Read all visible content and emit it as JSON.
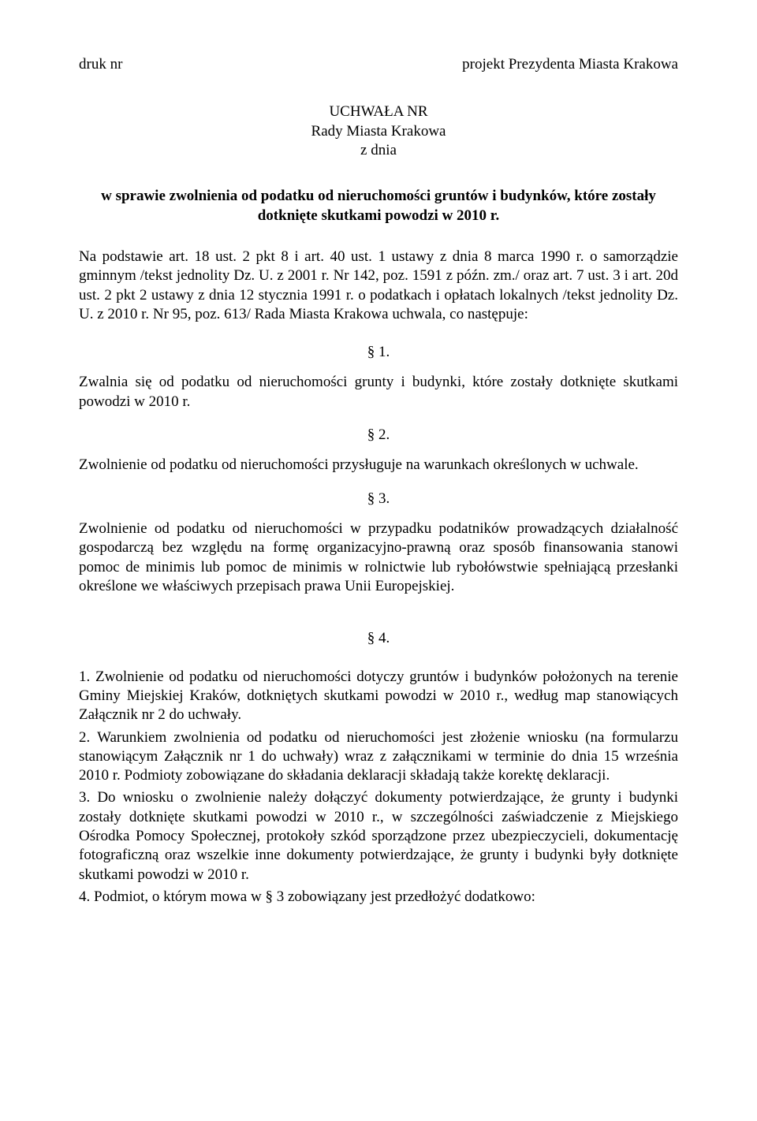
{
  "header": {
    "left": "druk nr",
    "right": "projekt Prezydenta Miasta Krakowa"
  },
  "titleBlock": {
    "line1": "UCHWAŁA NR",
    "line2": "Rady Miasta Krakowa",
    "line3": "z dnia"
  },
  "subject": "w sprawie zwolnienia od podatku od nieruchomości gruntów i budynków, które zostały dotknięte skutkami powodzi w 2010 r.",
  "legalBasis": "Na podstawie art. 18 ust. 2 pkt 8 i art. 40 ust. 1 ustawy z dnia 8 marca 1990 r. o samorządzie gminnym /tekst jednolity Dz. U. z 2001 r. Nr 142, poz. 1591 z późn. zm./ oraz art. 7 ust. 3 i art. 20d ust. 2 pkt 2 ustawy z dnia 12 stycznia 1991 r. o podatkach i opłatach lokalnych /tekst jednolity Dz. U. z 2010 r. Nr 95, poz. 613/ Rada Miasta Krakowa uchwala, co następuje:",
  "sections": {
    "s1": {
      "num": "§ 1.",
      "text": "Zwalnia się od podatku od nieruchomości grunty i budynki, które zostały dotknięte skutkami powodzi w 2010 r."
    },
    "s2": {
      "num": "§ 2.",
      "text": "Zwolnienie od podatku od nieruchomości przysługuje na warunkach określonych w uchwale."
    },
    "s3": {
      "num": "§ 3.",
      "text": "Zwolnienie od podatku od nieruchomości w przypadku podatników prowadzących działalność gospodarczą bez względu na formę organizacyjno-prawną oraz sposób finansowania stanowi pomoc de minimis lub pomoc de minimis w rolnictwie lub rybołówstwie spełniającą przesłanki określone we właściwych przepisach prawa Unii Europejskiej."
    },
    "s4": {
      "num": "§ 4.",
      "p1": "1. Zwolnienie od podatku od nieruchomości dotyczy gruntów i budynków położonych na terenie Gminy Miejskiej Kraków, dotkniętych skutkami powodzi w 2010 r., według map stanowiących Załącznik nr 2 do uchwały.",
      "p2": "2. Warunkiem zwolnienia od podatku od nieruchomości jest złożenie wniosku (na formularzu stanowiącym Załącznik nr 1 do uchwały) wraz z załącznikami w terminie do dnia 15 września 2010 r. Podmioty zobowiązane do składania deklaracji składają także korektę deklaracji.",
      "p3": "3. Do wniosku o zwolnienie należy dołączyć dokumenty potwierdzające, że grunty i budynki zostały dotknięte skutkami powodzi w 2010 r., w szczególności zaświadczenie z Miejskiego Ośrodka Pomocy Społecznej, protokoły szkód sporządzone przez ubezpieczycieli, dokumentację fotograficzną oraz wszelkie inne dokumenty potwierdzające, że grunty i budynki były dotknięte skutkami powodzi w 2010 r.",
      "p4": "4. Podmiot, o którym mowa w § 3 zobowiązany jest przedłożyć dodatkowo:"
    }
  }
}
